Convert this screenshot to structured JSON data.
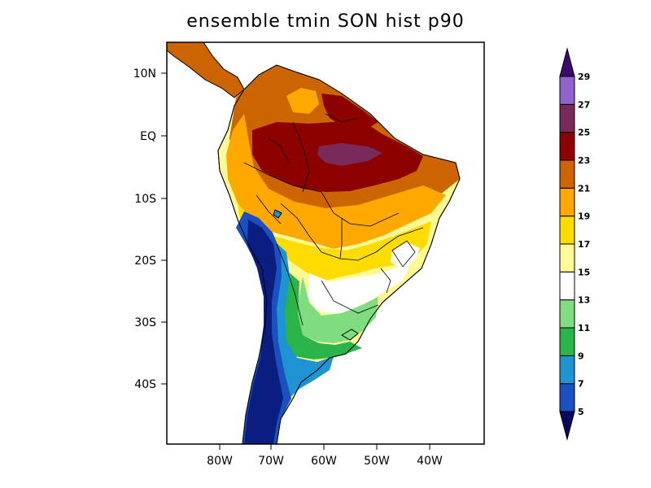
{
  "title": "ensemble tmin SON hist p90",
  "map": {
    "lat_ticks": [
      "10N",
      "EQ",
      "10S",
      "20S",
      "30S",
      "40S"
    ],
    "lon_ticks": [
      "80W",
      "70W",
      "60W",
      "50W",
      "40W"
    ]
  },
  "colorbar": {
    "levels": [
      "5",
      "7",
      "9",
      "11",
      "13",
      "15",
      "17",
      "19",
      "21",
      "23",
      "25",
      "27",
      "29"
    ],
    "colors": [
      "#0a1e82",
      "#1a50c0",
      "#1e94d2",
      "#2ab44a",
      "#80dc80",
      "#ffffff",
      "#fffa96",
      "#ffdc00",
      "#ffa800",
      "#cc6400",
      "#8c0000",
      "#7a2a5a",
      "#9064cc",
      "#3a0a6e"
    ],
    "below_color": "#0a0a5a",
    "above_color": "#3a0a6e"
  }
}
